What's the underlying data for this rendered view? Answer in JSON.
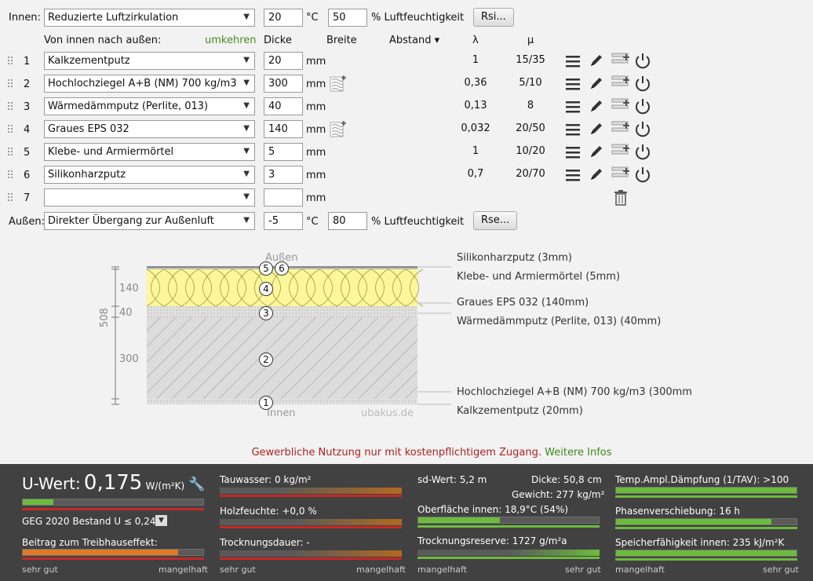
{
  "top": {
    "innen_label": "Innen:",
    "innen_select": "Reduzierte Luftzirkulation",
    "innen_temp": "20",
    "temp_unit": "°C",
    "innen_humidity": "50",
    "humidity_label": "% Luftfeuchtigkeit",
    "rsi_button": "Rsi...",
    "aussen_label": "Außen:",
    "aussen_select": "Direkter Übergang zur Außenluft",
    "aussen_temp": "-5",
    "aussen_humidity": "80",
    "rse_button": "Rse..."
  },
  "headers": {
    "direction": "Von innen nach außen:",
    "reverse": "umkehren",
    "dicke": "Dicke",
    "breite": "Breite",
    "abstand": "Abstand ▾",
    "lambda": "λ",
    "mu": "μ"
  },
  "layers": [
    {
      "num": "1",
      "material": "Kalkzementputz",
      "thickness": "20",
      "unit": "mm",
      "lambda": "1",
      "mu": "15/35",
      "has_breite_icon": false
    },
    {
      "num": "2",
      "material": "Hochlochziegel A+B (NM) 700 kg/m3",
      "thickness": "300",
      "unit": "mm",
      "lambda": "0,36",
      "mu": "5/10",
      "has_breite_icon": true
    },
    {
      "num": "3",
      "material": "Wärmedämmputz (Perlite, 013)",
      "thickness": "40",
      "unit": "mm",
      "lambda": "0,13",
      "mu": "8",
      "has_breite_icon": false
    },
    {
      "num": "4",
      "material": "Graues EPS  032",
      "thickness": "140",
      "unit": "mm",
      "lambda": "0,032",
      "mu": "20/50",
      "has_breite_icon": true
    },
    {
      "num": "5",
      "material": "Klebe- und Armiermörtel",
      "thickness": "5",
      "unit": "mm",
      "lambda": "1",
      "mu": "10/20",
      "has_breite_icon": false
    },
    {
      "num": "6",
      "material": "Silikonharzputz",
      "thickness": "3",
      "unit": "mm",
      "lambda": "0,7",
      "mu": "20/70",
      "has_breite_icon": false
    },
    {
      "num": "7",
      "material": "",
      "thickness": "",
      "unit": "mm",
      "lambda": "",
      "mu": "",
      "has_breite_icon": false
    }
  ],
  "diagram": {
    "outside": "Außen",
    "inside": "Innen",
    "watermark": "ubakus.de",
    "total": "508",
    "dims": [
      "140",
      "40",
      "300"
    ],
    "labels": [
      "Silikonharzputz (3mm)",
      "Klebe- und Armiermörtel (5mm)",
      "Graues EPS  032 (140mm)",
      "Wärmedämmputz (Perlite, 013) (40mm)",
      "Hochlochziegel A+B (NM) 700 kg/m3 (300mm",
      "Kalkzementputz (20mm)"
    ],
    "markers": [
      "5",
      "6",
      "4",
      "3",
      "2",
      "1"
    ]
  },
  "notice": {
    "text": "Gewerbliche Nutzung nur mit kostenpflichtigem Zugang.",
    "link": "Weitere Infos"
  },
  "results": {
    "uwert_label": "U-Wert:",
    "uwert_value": "0,175",
    "uwert_unit": "W/(m²K)",
    "geg": "GEG 2020 Bestand U ≤ 0,24",
    "treibhaus": "Beitrag zum Treibhauseffekt:",
    "sehr_gut": "sehr gut",
    "mangelhaft": "mangelhaft",
    "tauwasser": "Tauwasser: 0 kg/m²",
    "holzfeuchte": "Holzfeuchte: +0,0 %",
    "trocknungsdauer": "Trocknungsdauer: -",
    "sdwert": "sd-Wert: 5,2 m",
    "dicke": "Dicke: 50,8 cm",
    "gewicht": "Gewicht: 277 kg/m²",
    "oberflaeche": "Oberfläche innen: 18,9°C (54%)",
    "trocknungsreserve": "Trocknungsreserve: 1727 g/m²a",
    "temp_daempfung": "Temp.Ampl.Dämpfung (1/TAV): >100",
    "phasenverschiebung": "Phasenverschiebung: 16 h",
    "speicher": "Speicherfähigkeit innen: 235 kJ/m²K",
    "levels": {
      "uwert": 0.17,
      "treibhaus": 0.86,
      "oberflaeche": 0.45,
      "temp_daempfung": 1.0,
      "phasenverschiebung": 0.86,
      "speicher": 1.0
    },
    "colors": {
      "good": "#6dbb3c",
      "bad": "#c62828",
      "warn": "#e07b24"
    }
  }
}
